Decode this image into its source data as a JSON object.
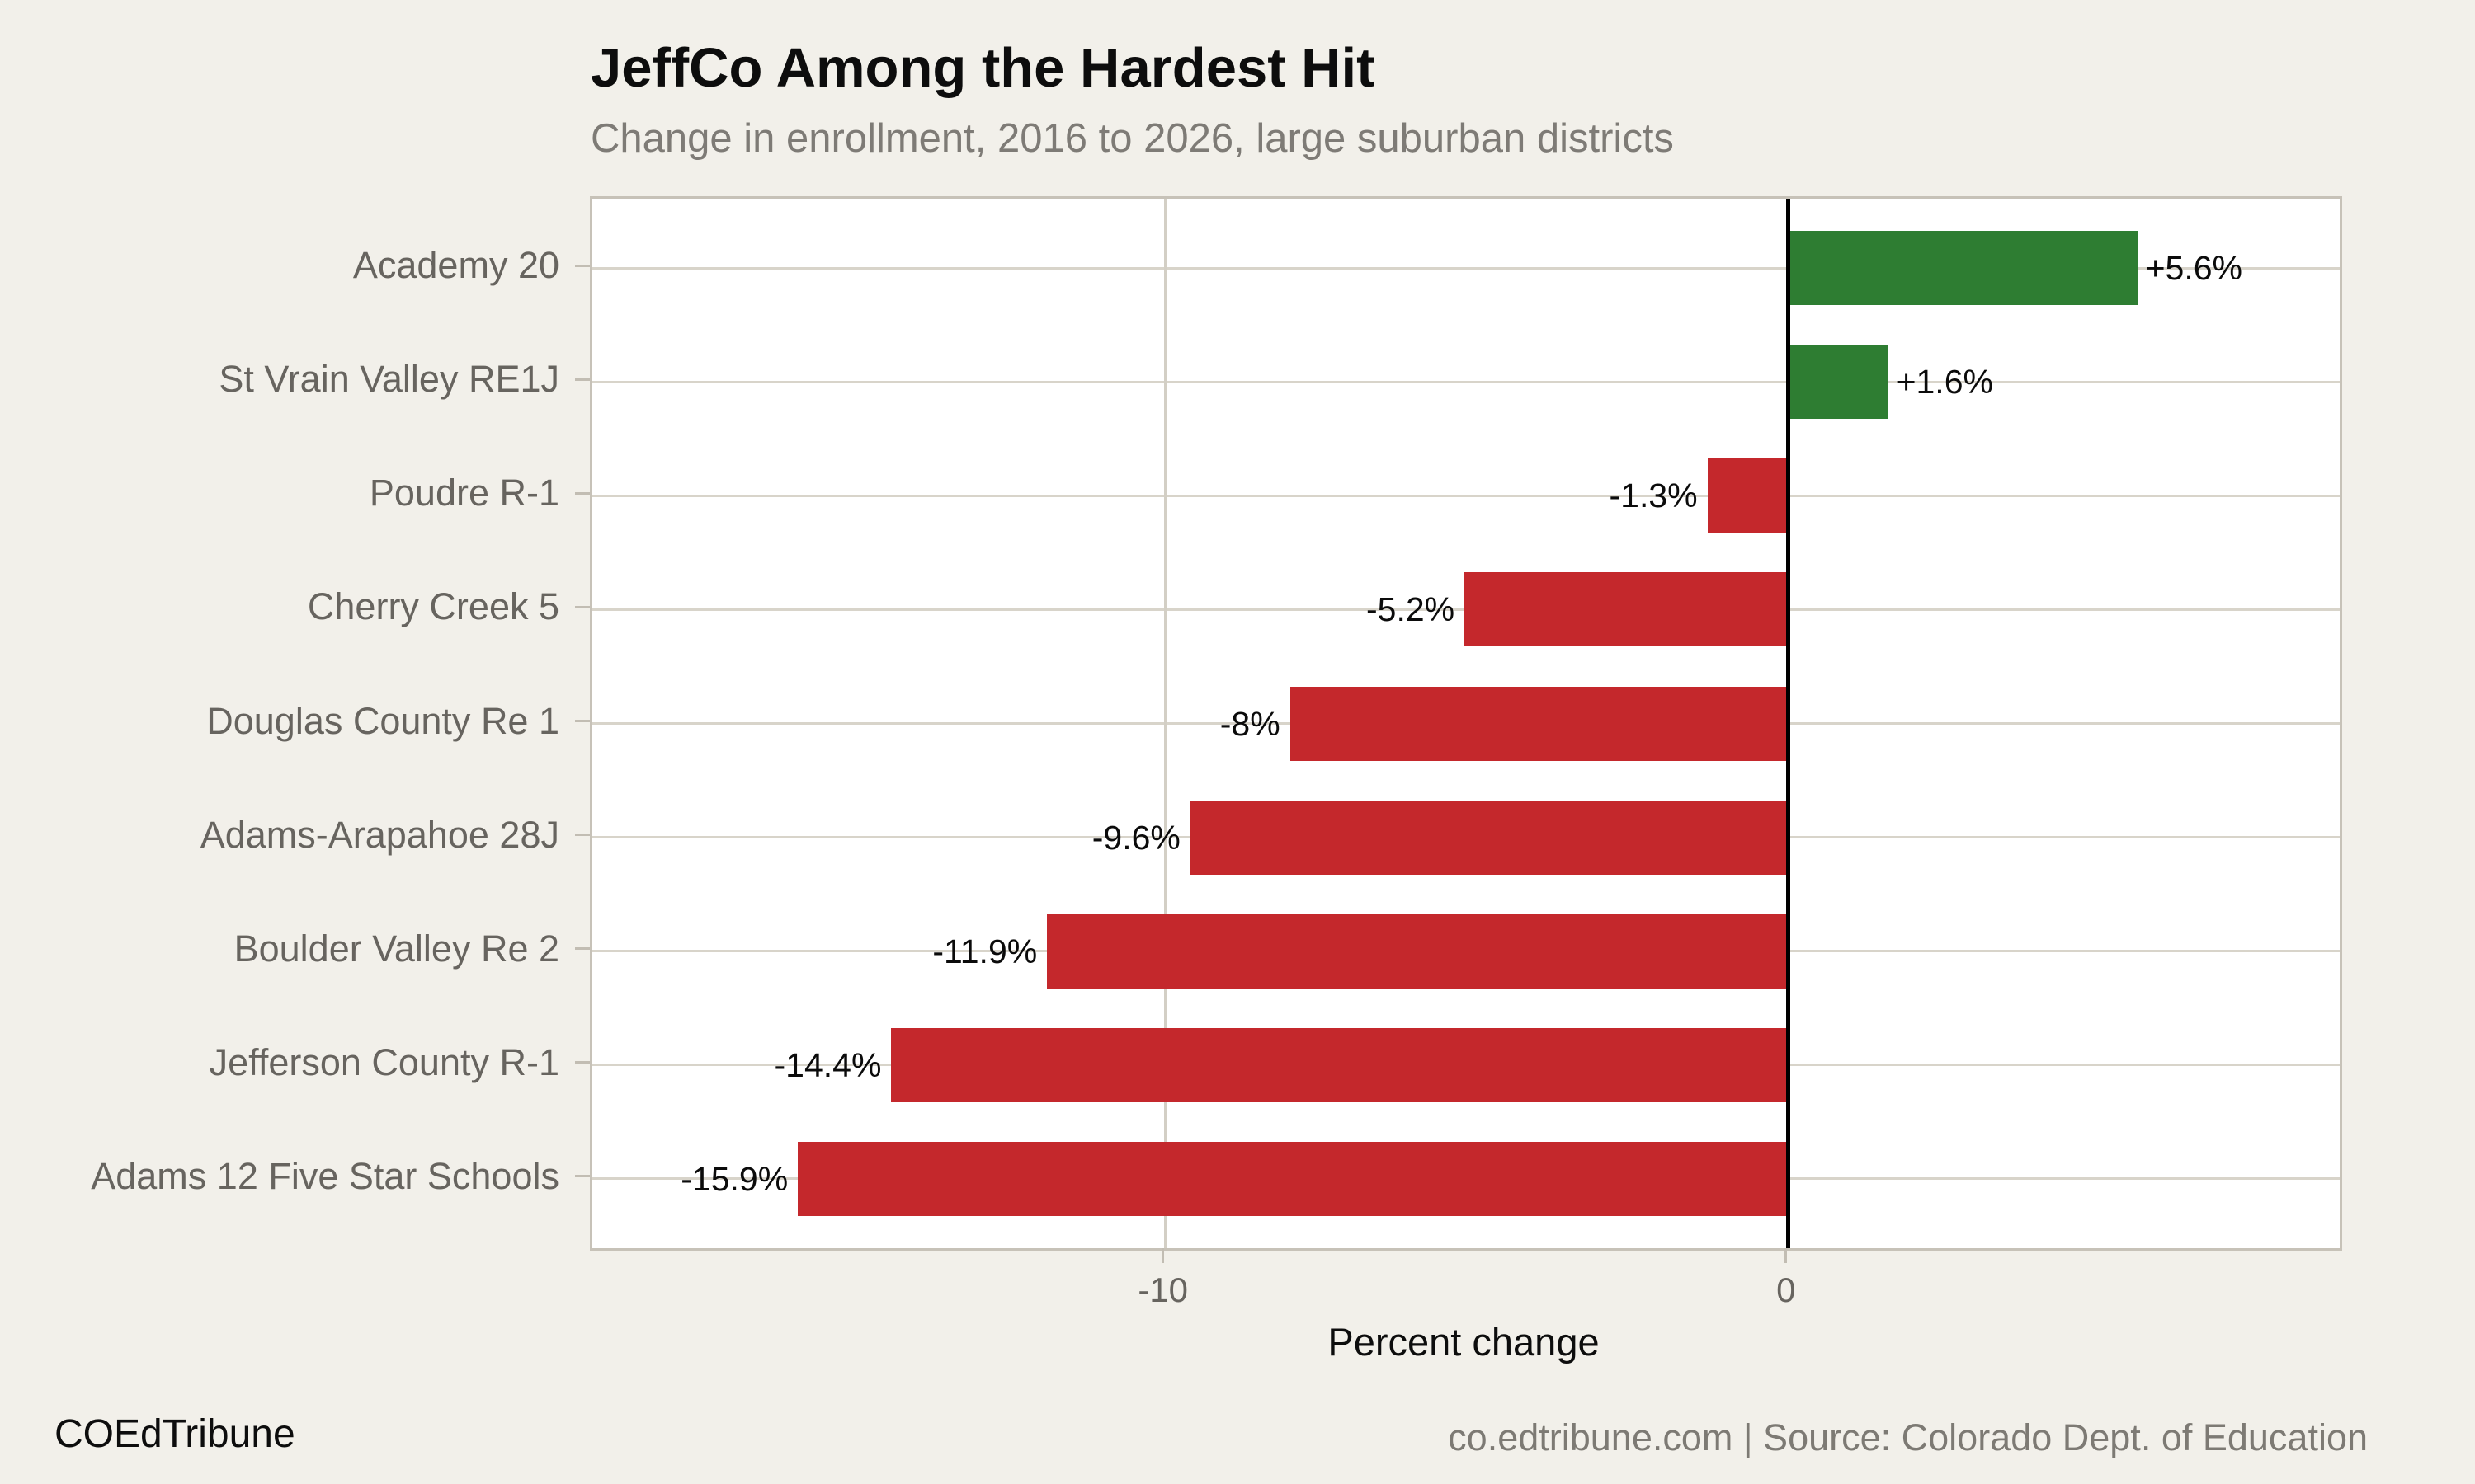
{
  "title": "JeffCo Among the Hardest Hit",
  "subtitle": "Change in enrollment, 2016 to 2026, large suburban districts",
  "footer": {
    "brand": "COEdTribune",
    "source": "co.edtribune.com | Source: Colorado Dept. of Education"
  },
  "chart_data": {
    "type": "bar",
    "orientation": "horizontal",
    "title": "JeffCo Among the Hardest Hit",
    "subtitle": "Change in enrollment, 2016 to 2026, large suburban districts",
    "categories": [
      "Academy 20",
      "St Vrain Valley RE1J",
      "Poudre R-1",
      "Cherry Creek 5",
      "Douglas County Re 1",
      "Adams-Arapahoe 28J",
      "Boulder Valley Re 2",
      "Jefferson County R-1",
      "Adams 12 Five Star Schools"
    ],
    "values": [
      5.6,
      1.6,
      -1.3,
      -5.2,
      -8,
      -9.6,
      -11.9,
      -14.4,
      -15.9
    ],
    "value_labels": [
      "+5.6%",
      "+1.6%",
      "-1.3%",
      "-5.2%",
      "-8%",
      "-9.6%",
      "-11.9%",
      "-14.4%",
      "-15.9%"
    ],
    "xlabel": "Percent change",
    "ylabel": "",
    "xlim": [
      -19.2,
      8.85
    ],
    "xticks": [
      {
        "value": -10,
        "label": "-10"
      },
      {
        "value": 0,
        "label": "0"
      }
    ],
    "grid": true,
    "legend": false,
    "colors": {
      "positive": "#2e7d32",
      "negative": "#c4282c",
      "zero_line": "#000000",
      "gridline": "#d8d4ca",
      "background": "#f2f0ea",
      "plot_background": "#ffffff",
      "axis_text": "#67645f"
    }
  }
}
